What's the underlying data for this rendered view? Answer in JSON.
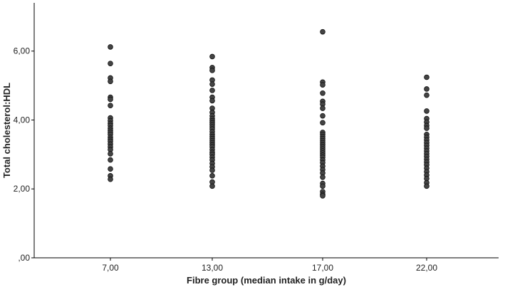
{
  "chart_data": {
    "type": "scatter",
    "title": "",
    "xlabel": "Fibre group (median intake in g/day)",
    "ylabel": "Total cholesterol:HDL",
    "categories": [
      "7,00",
      "13,00",
      "17,00",
      "22,00"
    ],
    "y_tick_labels": [
      ",00",
      "2,00",
      "4,00",
      "6,00"
    ],
    "y_ticks": [
      0,
      2,
      4,
      6
    ],
    "ylim": [
      0,
      7.4
    ],
    "grid": false,
    "point_color": "#444444",
    "series": [
      {
        "category": "7,00",
        "values": [
          6.12,
          5.64,
          5.22,
          5.12,
          4.66,
          4.6,
          4.42,
          4.06,
          3.98,
          3.9,
          3.84,
          3.76,
          3.7,
          3.64,
          3.58,
          3.5,
          3.44,
          3.38,
          3.3,
          3.22,
          3.14,
          3.02,
          2.84,
          2.58,
          2.38,
          2.28
        ]
      },
      {
        "category": "13,00",
        "values": [
          5.84,
          5.52,
          5.44,
          5.16,
          5.04,
          4.86,
          4.66,
          4.56,
          4.34,
          4.22,
          4.12,
          4.04,
          3.98,
          3.92,
          3.86,
          3.8,
          3.74,
          3.66,
          3.58,
          3.52,
          3.46,
          3.4,
          3.34,
          3.28,
          3.22,
          3.14,
          3.06,
          3.0,
          2.92,
          2.84,
          2.74,
          2.64,
          2.54,
          2.38,
          2.2,
          2.08
        ]
      },
      {
        "category": "17,00",
        "values": [
          6.56,
          5.1,
          5.02,
          4.78,
          4.54,
          4.46,
          4.34,
          4.12,
          3.92,
          3.64,
          3.58,
          3.52,
          3.46,
          3.4,
          3.34,
          3.28,
          3.22,
          3.16,
          3.1,
          3.04,
          2.98,
          2.92,
          2.84,
          2.76,
          2.66,
          2.56,
          2.46,
          2.34,
          2.16,
          2.08,
          1.92,
          1.84,
          1.8
        ]
      },
      {
        "category": "22,00",
        "values": [
          5.24,
          4.9,
          4.72,
          4.26,
          4.04,
          3.94,
          3.84,
          3.76,
          3.58,
          3.5,
          3.42,
          3.34,
          3.26,
          3.18,
          3.1,
          3.02,
          2.94,
          2.86,
          2.78,
          2.7,
          2.6,
          2.5,
          2.4,
          2.3,
          2.18,
          2.08
        ]
      }
    ]
  }
}
